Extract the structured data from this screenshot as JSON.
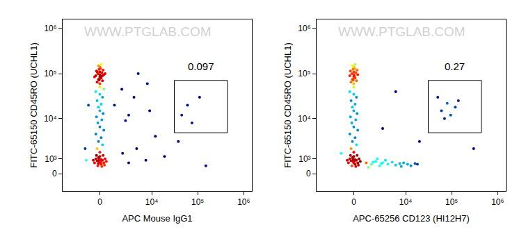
{
  "chart_data": [
    {
      "type": "scatter",
      "watermark": "WWW.PTGLAB.COM",
      "x_label": "APC Mouse IgG1",
      "y_label": "FITC-65150 CD45RO (UCHL1)",
      "xlim": [
        -4700,
        1500000
      ],
      "ylim": [
        -1200,
        1600000
      ],
      "xticks": [
        0,
        {
          "value": 10000,
          "label": "10⁴"
        },
        {
          "value": 100000,
          "label": "10⁵"
        },
        {
          "value": 1000000,
          "label": "10⁶"
        }
      ],
      "yticks": [
        0,
        {
          "value": 1000,
          "label": "10³"
        },
        {
          "value": 10000,
          "label": "10⁴"
        },
        {
          "value": 100000,
          "label": "10⁵"
        },
        {
          "value": 1000000,
          "label": "10⁶"
        }
      ],
      "gate": {
        "x": [
          31000,
          442000
        ],
        "y": [
          4800,
          71000
        ],
        "label": "0.097"
      },
      "points": [
        [
          0,
          890
        ],
        [
          200,
          900
        ],
        [
          -200,
          850
        ],
        [
          400,
          1000
        ],
        [
          -400,
          700
        ],
        [
          100,
          600
        ],
        [
          -100,
          1100
        ],
        [
          300,
          700
        ],
        [
          -300,
          1000
        ],
        [
          0,
          1200
        ],
        [
          500,
          800
        ],
        [
          -500,
          900
        ],
        [
          150,
          450
        ],
        [
          -150,
          500
        ],
        [
          250,
          1300
        ],
        [
          -250,
          1300
        ],
        [
          0,
          700
        ],
        [
          100,
          950
        ],
        [
          -50,
          800
        ],
        [
          350,
          550
        ],
        [
          50,
          850
        ],
        [
          -50,
          950
        ],
        [
          80,
          750
        ],
        [
          -120,
          650
        ],
        [
          0,
          1600
        ],
        [
          -200,
          2000
        ],
        [
          200,
          2500
        ],
        [
          -100,
          3000
        ],
        [
          100,
          3700
        ],
        [
          -300,
          4500
        ],
        [
          300,
          5500
        ],
        [
          0,
          6500
        ],
        [
          -150,
          8000
        ],
        [
          150,
          9400
        ],
        [
          -250,
          11000
        ],
        [
          250,
          13000
        ],
        [
          0,
          15000
        ],
        [
          -100,
          18000
        ],
        [
          100,
          21000
        ],
        [
          -200,
          25000
        ],
        [
          200,
          30000
        ],
        [
          0,
          35000
        ],
        [
          -300,
          40000
        ],
        [
          300,
          45000
        ],
        [
          0,
          50000
        ],
        [
          0,
          60000
        ],
        [
          -200,
          65000
        ],
        [
          200,
          70000
        ],
        [
          -100,
          75000
        ],
        [
          100,
          80000
        ],
        [
          0,
          85000
        ],
        [
          -300,
          90000
        ],
        [
          300,
          95000
        ],
        [
          -150,
          100000
        ],
        [
          150,
          105000
        ],
        [
          0,
          110000
        ],
        [
          -250,
          115000
        ],
        [
          250,
          120000
        ],
        [
          -50,
          125000
        ],
        [
          50,
          130000
        ],
        [
          0,
          140000
        ],
        [
          -100,
          150000
        ],
        [
          100,
          160000
        ],
        [
          -400,
          85000
        ],
        [
          400,
          100000
        ],
        [
          0,
          95000
        ],
        [
          -50,
          72000
        ],
        [
          50,
          88000
        ],
        [
          0,
          78000
        ],
        [
          -200,
          110000
        ],
        [
          200,
          90000
        ],
        [
          2100,
          1500
        ],
        [
          3000,
          700
        ],
        [
          4600,
          2000
        ],
        [
          7400,
          900
        ],
        [
          12000,
          4000
        ],
        [
          2500,
          9000
        ],
        [
          4000,
          30000
        ],
        [
          8000,
          60000
        ],
        [
          19000,
          1200
        ],
        [
          38000,
          3000
        ],
        [
          75000,
          8000
        ],
        [
          5000,
          100000
        ],
        [
          1200,
          20000
        ],
        [
          2000,
          45000
        ],
        [
          60000,
          20000
        ],
        [
          150000,
          500
        ],
        [
          3000,
          12000
        ],
        [
          9000,
          15000
        ],
        [
          45000,
          12000
        ],
        [
          110000,
          30000
        ],
        [
          -1100,
          900
        ],
        [
          -900,
          20000
        ],
        [
          -1200,
          2000
        ]
      ]
    },
    {
      "type": "scatter",
      "watermark": "WWW.PTGLAB.COM",
      "x_label": "APC-65256 CD123 (HI12H7)",
      "y_label": "FITC-65150 CD45RO (UCHL1)",
      "xlim": [
        -4700,
        1500000
      ],
      "ylim": [
        -1200,
        1600000
      ],
      "xticks": [
        0,
        {
          "value": 10000,
          "label": "10⁴"
        },
        {
          "value": 100000,
          "label": "10⁵"
        },
        {
          "value": 1000000,
          "label": "10⁶"
        }
      ],
      "yticks": [
        0,
        {
          "value": 1000,
          "label": "10³"
        },
        {
          "value": 10000,
          "label": "10⁴"
        },
        {
          "value": 100000,
          "label": "10⁵"
        },
        {
          "value": 1000000,
          "label": "10⁶"
        }
      ],
      "gate": {
        "x": [
          31000,
          442000
        ],
        "y": [
          4800,
          71000
        ],
        "label": "0.27"
      },
      "points": [
        [
          0,
          890
        ],
        [
          200,
          900
        ],
        [
          -200,
          850
        ],
        [
          400,
          1000
        ],
        [
          -400,
          700
        ],
        [
          100,
          600
        ],
        [
          -100,
          1100
        ],
        [
          300,
          700
        ],
        [
          -300,
          1000
        ],
        [
          0,
          1200
        ],
        [
          500,
          800
        ],
        [
          -500,
          900
        ],
        [
          150,
          450
        ],
        [
          -150,
          500
        ],
        [
          250,
          1300
        ],
        [
          -250,
          1300
        ],
        [
          0,
          700
        ],
        [
          100,
          950
        ],
        [
          -50,
          800
        ],
        [
          350,
          550
        ],
        [
          50,
          850
        ],
        [
          -50,
          950
        ],
        [
          0,
          1600
        ],
        [
          -200,
          2000
        ],
        [
          200,
          2500
        ],
        [
          -100,
          3000
        ],
        [
          100,
          3700
        ],
        [
          -300,
          4500
        ],
        [
          300,
          5500
        ],
        [
          0,
          6500
        ],
        [
          -150,
          8000
        ],
        [
          150,
          9400
        ],
        [
          -250,
          11000
        ],
        [
          250,
          13000
        ],
        [
          0,
          15000
        ],
        [
          -100,
          18000
        ],
        [
          100,
          21000
        ],
        [
          -200,
          25000
        ],
        [
          200,
          30000
        ],
        [
          0,
          35000
        ],
        [
          -300,
          40000
        ],
        [
          0,
          50000
        ],
        [
          0,
          60000
        ],
        [
          -200,
          65000
        ],
        [
          200,
          70000
        ],
        [
          -100,
          75000
        ],
        [
          100,
          80000
        ],
        [
          0,
          85000
        ],
        [
          -300,
          90000
        ],
        [
          300,
          95000
        ],
        [
          -150,
          100000
        ],
        [
          150,
          105000
        ],
        [
          0,
          110000
        ],
        [
          -250,
          115000
        ],
        [
          250,
          120000
        ],
        [
          -50,
          125000
        ],
        [
          50,
          130000
        ],
        [
          0,
          140000
        ],
        [
          -100,
          150000
        ],
        [
          100,
          160000
        ],
        [
          0,
          95000
        ],
        [
          -50,
          72000
        ],
        [
          50,
          88000
        ],
        [
          0,
          78000
        ],
        [
          1000,
          700
        ],
        [
          1500,
          600
        ],
        [
          2000,
          800
        ],
        [
          2500,
          500
        ],
        [
          3000,
          700
        ],
        [
          4000,
          600
        ],
        [
          5000,
          750
        ],
        [
          6000,
          550
        ],
        [
          7400,
          650
        ],
        [
          9000,
          700
        ],
        [
          11000,
          600
        ],
        [
          13000,
          500
        ],
        [
          16000,
          650
        ],
        [
          18000,
          600
        ],
        [
          1200,
          400
        ],
        [
          3500,
          900
        ],
        [
          8000,
          450
        ],
        [
          2200,
          1000
        ],
        [
          1700,
          750
        ],
        [
          2800,
          650
        ],
        [
          60000,
          15000
        ],
        [
          80000,
          22000
        ],
        [
          70000,
          10000
        ],
        [
          120000,
          18000
        ],
        [
          50000,
          30000
        ],
        [
          95000,
          12000
        ],
        [
          140000,
          25000
        ],
        [
          3000,
          6000
        ],
        [
          20000,
          3000
        ],
        [
          6000,
          40000
        ],
        [
          300000,
          2000
        ],
        [
          -1000,
          1500
        ]
      ]
    }
  ]
}
